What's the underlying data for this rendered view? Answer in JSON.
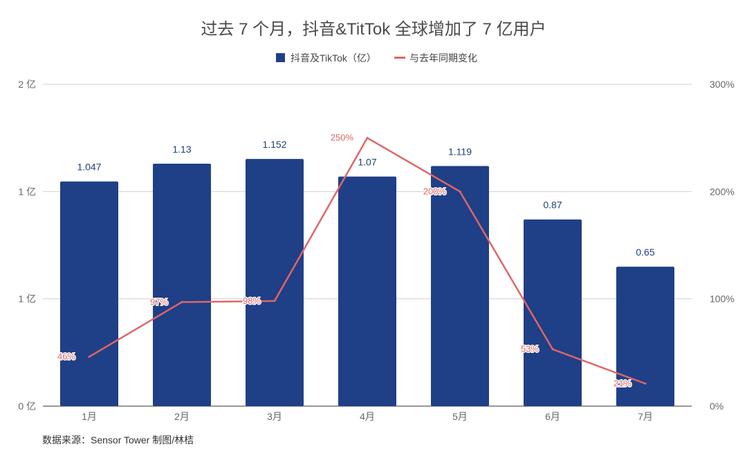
{
  "chart_data": {
    "type": "bar",
    "title": "过去 7 个月，抖音&TitTok 全球增加了 7 亿用户",
    "categories": [
      "1月",
      "2月",
      "3月",
      "4月",
      "5月",
      "6月",
      "7月"
    ],
    "series": [
      {
        "name": "抖音及TikTok（亿）",
        "type": "bar",
        "axis": "left",
        "color": "#1f3f87",
        "values": [
          1.047,
          1.13,
          1.152,
          1.07,
          1.119,
          0.87,
          0.65
        ],
        "labels": [
          "1.047",
          "1.13",
          "1.152",
          "1.07",
          "1.119",
          "0.87",
          "0.65"
        ]
      },
      {
        "name": "与去年同期变化",
        "type": "line",
        "axis": "right",
        "color": "#e06666",
        "values": [
          46,
          97,
          98,
          250,
          200,
          53,
          21
        ],
        "labels": [
          "46%",
          "97%",
          "98%",
          "250%",
          "200%",
          "53%",
          "21%"
        ]
      }
    ],
    "left_axis": {
      "ylim": [
        0,
        1.5
      ],
      "ticks": [
        0,
        0.5,
        1,
        1.5
      ],
      "tick_labels": [
        "0 亿",
        "1 亿",
        "1 亿",
        "2 亿"
      ]
    },
    "right_axis": {
      "ylim": [
        0,
        300
      ],
      "ticks": [
        0,
        100,
        200,
        300
      ],
      "tick_labels": [
        "0%",
        "100%",
        "200%",
        "300%"
      ]
    },
    "grid": true,
    "legend_position": "top-center"
  },
  "source_note": "数据来源：Sensor Tower 制图/林桔"
}
